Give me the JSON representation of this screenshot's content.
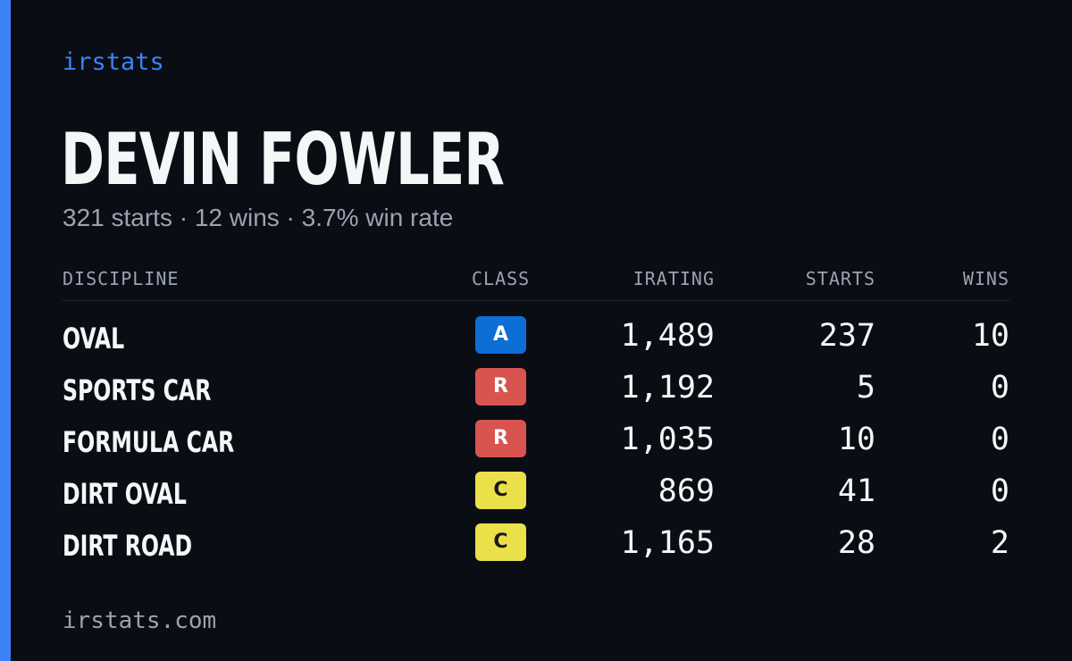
{
  "brand": "irstats",
  "name": "DEVIN FOWLER",
  "summary": "321 starts · 12 wins · 3.7% win rate",
  "table": {
    "headers": [
      "DISCIPLINE",
      "CLASS",
      "IRATING",
      "STARTS",
      "WINS"
    ],
    "rows": [
      {
        "discipline": "OVAL",
        "class": "A",
        "class_color": "#0d6fd6",
        "class_text_color": "#ffffff",
        "irating": "1,489",
        "starts": 237,
        "wins": 10
      },
      {
        "discipline": "SPORTS CAR",
        "class": "R",
        "class_color": "#d9534f",
        "class_text_color": "#ffffff",
        "irating": "1,192",
        "starts": 5,
        "wins": 0
      },
      {
        "discipline": "FORMULA CAR",
        "class": "R",
        "class_color": "#d9534f",
        "class_text_color": "#ffffff",
        "irating": "1,035",
        "starts": 10,
        "wins": 0
      },
      {
        "discipline": "DIRT OVAL",
        "class": "C",
        "class_color": "#ebe04a",
        "class_text_color": "#1a1a1a",
        "irating": "869",
        "starts": 41,
        "wins": 0
      },
      {
        "discipline": "DIRT ROAD",
        "class": "C",
        "class_color": "#ebe04a",
        "class_text_color": "#1a1a1a",
        "irating": "1,165",
        "starts": 28,
        "wins": 2
      }
    ]
  },
  "footer": "irstats.com"
}
